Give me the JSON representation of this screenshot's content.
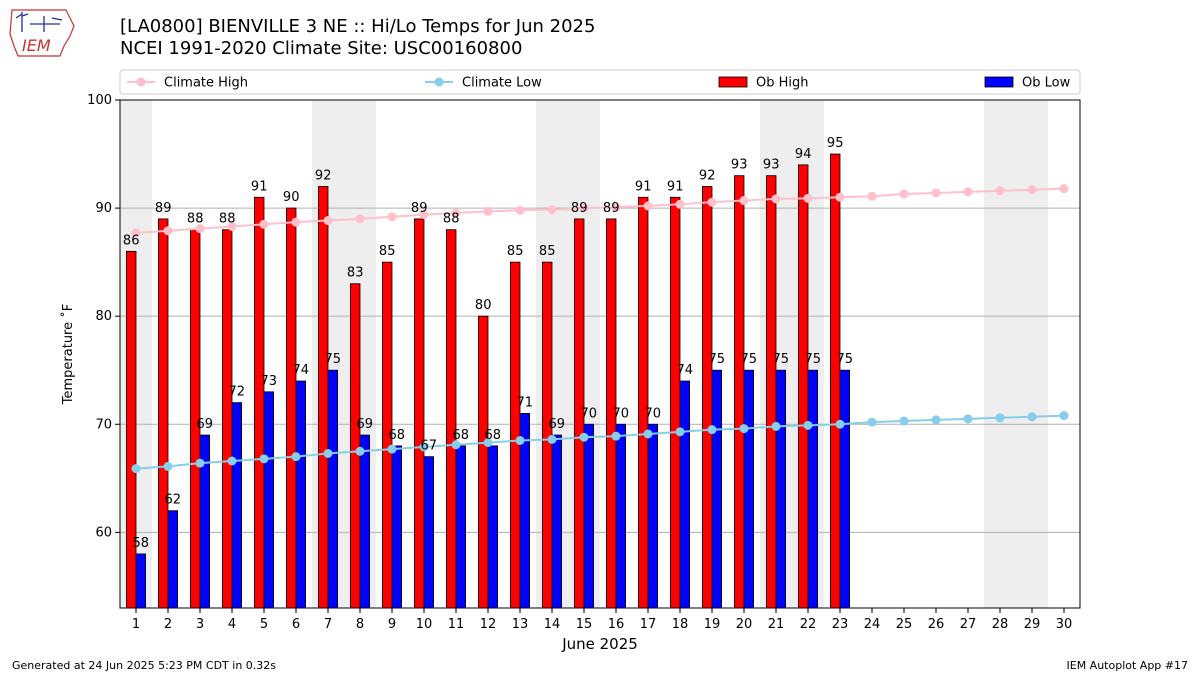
{
  "header": {
    "title_line1": "[LA0800] BIENVILLE 3 NE :: Hi/Lo Temps for Jun 2025",
    "title_line2": "NCEI 1991-2020 Climate Site: USC00160800",
    "logo_text": "IEM"
  },
  "footer": {
    "generated": "Generated at 24 Jun 2025 5:23 PM CDT in 0.32s",
    "app": "IEM Autoplot App #17"
  },
  "colors": {
    "ob_high": "#ff0000",
    "ob_low": "#0000ff",
    "climate_high": "#ffc0cb",
    "climate_low": "#87ceeb",
    "weekend_shade": "#eeeeee",
    "grid": "#b0b0b0"
  },
  "chart_data": {
    "type": "bar",
    "xlabel": "June 2025",
    "ylabel": "Temperature ˚F",
    "ylim": [
      53,
      100
    ],
    "yticks": [
      60,
      70,
      80,
      90,
      100
    ],
    "grid": "horizontal",
    "legend_position": "top",
    "categories": [
      1,
      2,
      3,
      4,
      5,
      6,
      7,
      8,
      9,
      10,
      11,
      12,
      13,
      14,
      15,
      16,
      17,
      18,
      19,
      20,
      21,
      22,
      23,
      24,
      25,
      26,
      27,
      28,
      29,
      30
    ],
    "weekend_spans": [
      [
        1,
        1
      ],
      [
        7,
        8
      ],
      [
        14,
        15
      ],
      [
        21,
        22
      ],
      [
        28,
        29
      ]
    ],
    "series": [
      {
        "name": "Ob High",
        "kind": "bar",
        "values": [
          86,
          89,
          88,
          88,
          91,
          90,
          92,
          83,
          85,
          89,
          88,
          80,
          85,
          85,
          89,
          89,
          91,
          91,
          92,
          93,
          93,
          94,
          95,
          null,
          null,
          null,
          null,
          null,
          null,
          null
        ]
      },
      {
        "name": "Ob Low",
        "kind": "bar",
        "values": [
          58,
          62,
          69,
          72,
          73,
          74,
          75,
          69,
          68,
          67,
          68,
          68,
          71,
          69,
          70,
          70,
          70,
          74,
          75,
          75,
          75,
          75,
          75,
          null,
          null,
          null,
          null,
          null,
          null,
          null
        ]
      },
      {
        "name": "Climate High",
        "kind": "line",
        "values": [
          87.7,
          87.9,
          88.1,
          88.3,
          88.5,
          88.7,
          88.85,
          89.0,
          89.2,
          89.4,
          89.55,
          89.7,
          89.8,
          89.85,
          90.0,
          90.1,
          90.2,
          90.35,
          90.55,
          90.7,
          90.85,
          90.9,
          91.0,
          91.1,
          91.3,
          91.4,
          91.5,
          91.6,
          91.7,
          91.8
        ]
      },
      {
        "name": "Climate Low",
        "kind": "line",
        "values": [
          65.9,
          66.1,
          66.4,
          66.6,
          66.8,
          67.0,
          67.3,
          67.5,
          67.7,
          67.9,
          68.1,
          68.3,
          68.5,
          68.6,
          68.8,
          68.9,
          69.1,
          69.3,
          69.5,
          69.6,
          69.8,
          69.9,
          70.0,
          70.2,
          70.3,
          70.4,
          70.5,
          70.6,
          70.7,
          70.8
        ]
      }
    ]
  }
}
